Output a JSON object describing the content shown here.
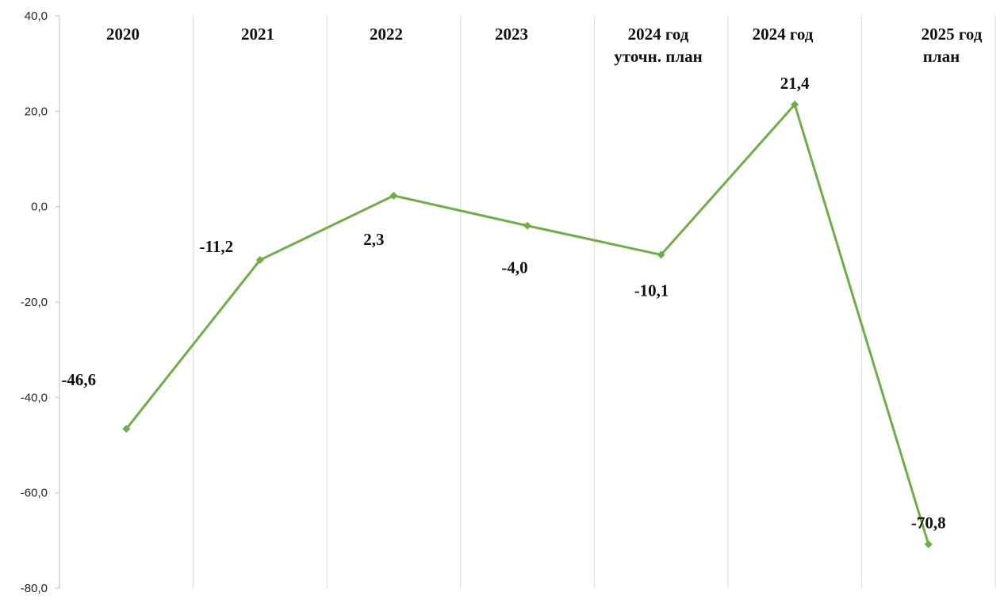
{
  "chart_data": {
    "type": "line",
    "categories": [
      [
        "2020"
      ],
      [
        "2021"
      ],
      [
        "2022"
      ],
      [
        "2023"
      ],
      [
        "2024 год",
        "уточн. план"
      ],
      [
        "2024 год"
      ],
      [
        "2025 год",
        "план"
      ]
    ],
    "series": [
      {
        "values": [
          -46.6,
          -11.2,
          2.3,
          -4.0,
          -10.1,
          21.4,
          -70.8
        ]
      }
    ],
    "data_labels": [
      "-46,6",
      "-11,2",
      "2,3",
      "-4,0",
      "-10,1",
      "21,4",
      "-70,8"
    ],
    "y_ticks": [
      "40,0",
      "20,0",
      "0,0",
      "-20,0",
      "-40,0",
      "-60,0",
      "-80,0"
    ],
    "y_tick_values": [
      40,
      20,
      0,
      -20,
      -40,
      -60,
      -80
    ],
    "ylim": [
      -80,
      40
    ],
    "xlabel": "",
    "ylabel": "",
    "title": "",
    "grid": "vertical",
    "legend": "none",
    "colors": {
      "line": "#70ad47",
      "grid": "#d9d9d9",
      "axis": "#bfbfbf"
    }
  }
}
